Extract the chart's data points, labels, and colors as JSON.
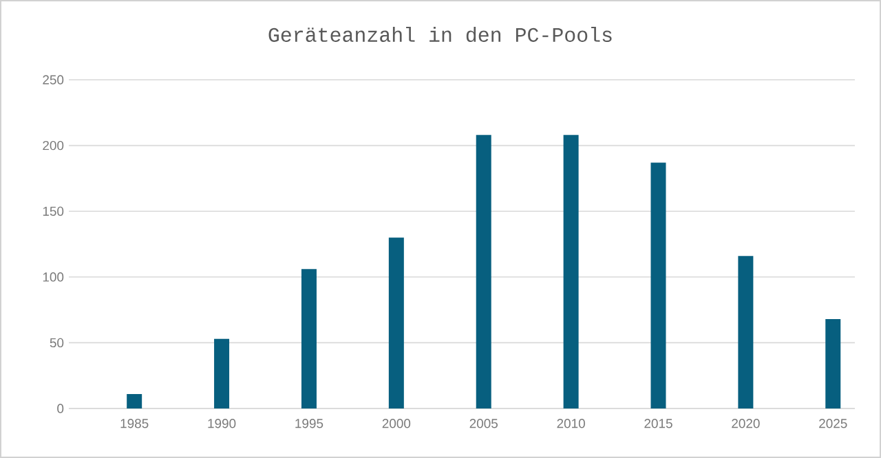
{
  "chart_data": {
    "type": "bar",
    "title": "Geräteanzahl in den PC-Pools",
    "categories": [
      "1985",
      "1990",
      "1995",
      "2000",
      "2005",
      "2010",
      "2015",
      "2020",
      "2025"
    ],
    "values": [
      11,
      53,
      106,
      130,
      208,
      208,
      187,
      116,
      68
    ],
    "color": "#075f7f",
    "ylim": [
      0,
      250
    ],
    "yticks": [
      0,
      50,
      100,
      150,
      200,
      250
    ],
    "grid": "y"
  }
}
